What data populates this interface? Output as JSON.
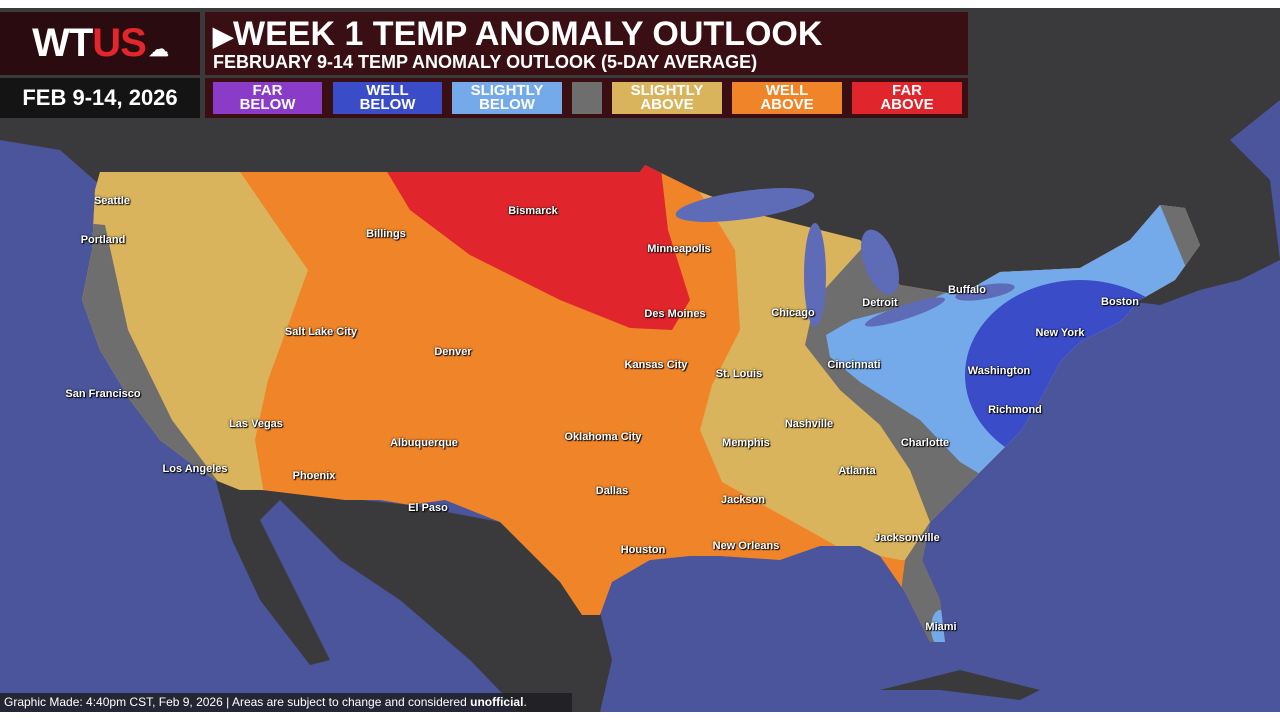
{
  "header": {
    "logo_text_a": "WT",
    "logo_text_b": "US",
    "date_range": "FEB 9-14, 2026",
    "title": "WEEK 1 TEMP ANOMALY OUTLOOK",
    "subtitle": "FEBRUARY 9-14 TEMP ANOMALY OUTLOOK (5-DAY AVERAGE)",
    "title_icon": "play-triangle-icon",
    "logo_icon": "cloud-icon"
  },
  "legend": [
    {
      "line1": "FAR",
      "line2": "BELOW",
      "color": "#8a3cc8"
    },
    {
      "line1": "WELL",
      "line2": "BELOW",
      "color": "#3a4cc8"
    },
    {
      "line1": "SLIGHTLY",
      "line2": "BELOW",
      "color": "#74aaea"
    },
    {
      "line1": "",
      "line2": "",
      "color": "#6e6e6e"
    },
    {
      "line1": "SLIGHTLY",
      "line2": "ABOVE",
      "color": "#d9b45c"
    },
    {
      "line1": "WELL",
      "line2": "ABOVE",
      "color": "#f08428"
    },
    {
      "line1": "FAR",
      "line2": "ABOVE",
      "color": "#e0262c"
    }
  ],
  "colors": {
    "ocean": "#4a559b",
    "land": "#3a3a3c",
    "lake": "#5e6cb8",
    "far_above": "#e0262c",
    "well_above": "#f08428",
    "slightly_above": "#d9b45c",
    "near_normal": "#6e6e6e",
    "slightly_below": "#74aaea",
    "well_below": "#3a4cc8"
  },
  "cities": [
    "Seattle",
    "Portland",
    "San Francisco",
    "Los Angeles",
    "Las Vegas",
    "Salt Lake City",
    "Phoenix",
    "Billings",
    "Denver",
    "Albuquerque",
    "El Paso",
    "Bismarck",
    "Minneapolis",
    "Des Moines",
    "Kansas City",
    "Oklahoma City",
    "Dallas",
    "Houston",
    "St. Louis",
    "Memphis",
    "Jackson",
    "New Orleans",
    "Chicago",
    "Nashville",
    "Atlanta",
    "Jacksonville",
    "Miami",
    "Detroit",
    "Cincinnati",
    "Charlotte",
    "Buffalo",
    "Washington",
    "Richmond",
    "New York",
    "Boston"
  ],
  "footer": {
    "made": "Graphic Made: 4:40pm CST, Feb 9, 2026",
    "separator": "|",
    "note": "Areas are subject to change and considered",
    "note_bold": "unofficial",
    "period": "."
  }
}
